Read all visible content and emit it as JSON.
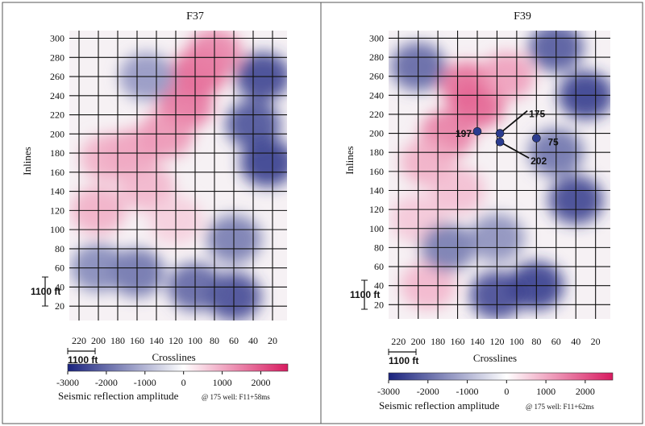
{
  "chart_data": [
    {
      "type": "heatmap",
      "title": "F37",
      "xlabel": "Crosslines",
      "ylabel": "Inlines",
      "x_ticks": [
        220,
        200,
        180,
        160,
        140,
        120,
        100,
        80,
        60,
        40,
        20
      ],
      "y_ticks": [
        20,
        40,
        60,
        80,
        100,
        120,
        140,
        160,
        180,
        200,
        220,
        240,
        260,
        280,
        300
      ],
      "xlim": [
        230,
        5
      ],
      "ylim": [
        5,
        308
      ],
      "grid": true,
      "scale_bar_x": "1100 ft",
      "scale_bar_y": "1100 ft",
      "colorbar": {
        "label": "Seismic reflection amplitude",
        "note": "@ 175 well: F11+58ms",
        "range": [
          -3000,
          2700
        ],
        "ticks": [
          -3000,
          -2000,
          -1000,
          0,
          1000,
          2000
        ],
        "colors": {
          "negative": "#1a237e",
          "mid": "#ffffff",
          "positive": "#d81b60"
        }
      },
      "regions": [
        {
          "amp": 1900,
          "x": 95,
          "y": 265
        },
        {
          "amp": 1700,
          "x": 110,
          "y": 230
        },
        {
          "amp": 1500,
          "x": 80,
          "y": 285
        },
        {
          "amp": 1300,
          "x": 130,
          "y": 200
        },
        {
          "amp": 1200,
          "x": 165,
          "y": 180
        },
        {
          "amp": 1000,
          "x": 190,
          "y": 175
        },
        {
          "amp": 900,
          "x": 150,
          "y": 145
        },
        {
          "amp": 1000,
          "x": 200,
          "y": 120
        },
        {
          "amp": 600,
          "x": 120,
          "y": 110
        },
        {
          "amp": -2700,
          "x": 30,
          "y": 260
        },
        {
          "amp": -2800,
          "x": 25,
          "y": 170
        },
        {
          "amp": -2500,
          "x": 40,
          "y": 210
        },
        {
          "amp": -2600,
          "x": 60,
          "y": 30
        },
        {
          "amp": -2200,
          "x": 100,
          "y": 40
        },
        {
          "amp": -2000,
          "x": 160,
          "y": 55
        },
        {
          "amp": -1700,
          "x": 200,
          "y": 60
        },
        {
          "amp": -1900,
          "x": 60,
          "y": 90
        },
        {
          "amp": -1500,
          "x": 150,
          "y": 260
        }
      ]
    },
    {
      "type": "heatmap",
      "title": "F39",
      "xlabel": "Crosslines",
      "ylabel": "Inlines",
      "x_ticks": [
        220,
        200,
        180,
        160,
        140,
        120,
        100,
        80,
        60,
        40,
        20
      ],
      "y_ticks": [
        20,
        40,
        60,
        80,
        100,
        120,
        140,
        160,
        180,
        200,
        220,
        240,
        260,
        280,
        300
      ],
      "xlim": [
        230,
        5
      ],
      "ylim": [
        5,
        308
      ],
      "grid": true,
      "scale_bar_x": "1100 ft",
      "scale_bar_y": "1100 ft",
      "colorbar": {
        "label": "Seismic reflection amplitude",
        "note": "@ 175 well: F11+62ms",
        "range": [
          -3000,
          2700
        ],
        "ticks": [
          -3000,
          -2000,
          -1000,
          0,
          1000,
          2000
        ],
        "colors": {
          "negative": "#1a237e",
          "mid": "#ffffff",
          "positive": "#d81b60"
        }
      },
      "wells": [
        {
          "label": "197",
          "x": 140,
          "y": 202
        },
        {
          "label": "175",
          "x": 117,
          "y": 200
        },
        {
          "label": "202",
          "x": 117,
          "y": 191
        },
        {
          "label": "75",
          "x": 80,
          "y": 195
        }
      ],
      "regions": [
        {
          "amp": 1900,
          "x": 140,
          "y": 230
        },
        {
          "amp": 1800,
          "x": 150,
          "y": 250
        },
        {
          "amp": 1600,
          "x": 170,
          "y": 200
        },
        {
          "amp": 1200,
          "x": 110,
          "y": 260
        },
        {
          "amp": 1000,
          "x": 190,
          "y": 170
        },
        {
          "amp": 800,
          "x": 160,
          "y": 140
        },
        {
          "amp": 700,
          "x": 200,
          "y": 110
        },
        {
          "amp": 900,
          "x": 190,
          "y": 40
        },
        {
          "amp": -2800,
          "x": 30,
          "y": 240
        },
        {
          "amp": -2700,
          "x": 40,
          "y": 130
        },
        {
          "amp": -2800,
          "x": 80,
          "y": 40
        },
        {
          "amp": -2600,
          "x": 120,
          "y": 30
        },
        {
          "amp": -2400,
          "x": 60,
          "y": 290
        },
        {
          "amp": -2200,
          "x": 200,
          "y": 270
        },
        {
          "amp": -2000,
          "x": 60,
          "y": 180
        },
        {
          "amp": -1900,
          "x": 170,
          "y": 80
        },
        {
          "amp": -1600,
          "x": 120,
          "y": 90
        }
      ]
    }
  ]
}
